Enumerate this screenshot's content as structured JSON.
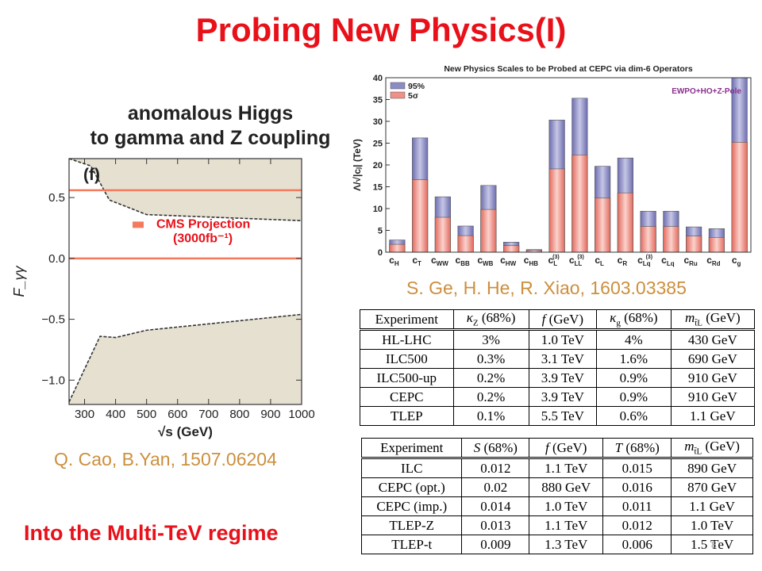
{
  "slide": {
    "title": "Probing New Physics(I)",
    "left_panel_title_line1": "anomalous Higgs",
    "left_panel_title_line2": "to gamma and Z coupling",
    "left_citation": "Q. Cao,  B.Yan, 1507.06204",
    "right_citation": "S. Ge, H. He, R. Xiao, 1603.03385",
    "bottom_text": "Into the Multi-TeV regime",
    "page_number": "8"
  },
  "colors": {
    "title_red": "#e8111a",
    "citation_orange": "#cc8f3d",
    "band_fill": "#e6e0d1",
    "cms_line": "#f47a5e",
    "bar_95": "#8c8cc4",
    "bar_5sigma": "#ef9187"
  },
  "chart_data": [
    {
      "type": "area",
      "panel_label": "(f)",
      "xlabel": "√s (GeV)",
      "ylabel": "F_γγ",
      "xlim": [
        250,
        1000
      ],
      "ylim": [
        -1.2,
        0.82
      ],
      "xticks": [
        "300",
        "400",
        "500",
        "600",
        "700",
        "800",
        "900",
        "1000"
      ],
      "yticks": [
        "0.5",
        "0.0",
        "−0.5",
        "−1.0"
      ],
      "ytick_values": [
        0.5,
        0.0,
        -0.5,
        -1.0
      ],
      "xtick_values": [
        300,
        400,
        500,
        600,
        700,
        800,
        900,
        1000
      ],
      "upper_boundary": {
        "x": [
          250,
          320,
          380,
          500,
          1000
        ],
        "y": [
          0.82,
          0.76,
          0.48,
          0.36,
          0.31
        ]
      },
      "lower_boundary": {
        "x": [
          250,
          350,
          400,
          500,
          1000
        ],
        "y": [
          -1.18,
          -0.64,
          -0.65,
          -0.59,
          -0.46
        ]
      },
      "cms_projection": {
        "lines_y": [
          0.56,
          0.0
        ],
        "label_line1": "CMS Projection",
        "label_line2": "(3000fb⁻¹)"
      }
    },
    {
      "type": "bar",
      "title": "New Physics Scales to be Probed at CEPC via dim-6 Operators",
      "ylabel": "Λ/√|cⱼ| (TeV)",
      "ylim": [
        0,
        40
      ],
      "yticks": [
        "0",
        "5",
        "10",
        "15",
        "20",
        "25",
        "30",
        "35",
        "40"
      ],
      "ytick_values": [
        0,
        5,
        10,
        15,
        20,
        25,
        30,
        35,
        40
      ],
      "annotation": "EWPO+HO+Z-Pole",
      "legend_position": "top-left",
      "categories": [
        "cH",
        "cT",
        "cWW",
        "cBB",
        "cWB",
        "cHW",
        "cHB",
        "cL(3)",
        "cLL(3)",
        "cL",
        "cR",
        "cLq(3)",
        "cLq",
        "cRu",
        "cRd",
        "cg"
      ],
      "category_labels": [
        {
          "m": "c",
          "s": "H",
          "p": ""
        },
        {
          "m": "c",
          "s": "T",
          "p": ""
        },
        {
          "m": "c",
          "s": "WW",
          "p": ""
        },
        {
          "m": "c",
          "s": "BB",
          "p": ""
        },
        {
          "m": "c",
          "s": "WB",
          "p": ""
        },
        {
          "m": "c",
          "s": "HW",
          "p": ""
        },
        {
          "m": "c",
          "s": "HB",
          "p": ""
        },
        {
          "m": "c",
          "s": "L",
          "p": "(3)"
        },
        {
          "m": "c",
          "s": "LL",
          "p": "(3)"
        },
        {
          "m": "c",
          "s": "L",
          "p": ""
        },
        {
          "m": "c",
          "s": "R",
          "p": ""
        },
        {
          "m": "c",
          "s": "Lq",
          "p": "(3)"
        },
        {
          "m": "c",
          "s": "Lq",
          "p": ""
        },
        {
          "m": "c",
          "s": "Ru",
          "p": ""
        },
        {
          "m": "c",
          "s": "Rd",
          "p": ""
        },
        {
          "m": "c",
          "s": "g",
          "p": ""
        }
      ],
      "series": [
        {
          "name": "95%",
          "values": [
            2.8,
            26.2,
            12.7,
            6.0,
            15.3,
            2.3,
            0.6,
            30.3,
            35.3,
            19.7,
            21.6,
            9.4,
            9.4,
            5.8,
            5.4,
            40.0
          ]
        },
        {
          "name": "5σ",
          "values": [
            1.8,
            16.6,
            8.0,
            3.8,
            9.8,
            1.5,
            0.4,
            19.1,
            22.3,
            12.4,
            13.6,
            5.9,
            5.9,
            3.7,
            3.4,
            25.2
          ]
        }
      ]
    },
    {
      "type": "table",
      "columns": [
        "Experiment",
        "κZ (68%)",
        "f (GeV)",
        "κg (68%)",
        "m t̃L (GeV)"
      ],
      "header": [
        {
          "pre": "",
          "it": "",
          "post": "Experiment"
        },
        {
          "pre": "",
          "it": "κ",
          "sub": "Z",
          "post": " (68%)"
        },
        {
          "pre": "",
          "it": "f",
          "sub": "",
          "post": " (GeV)"
        },
        {
          "pre": "",
          "it": "κ",
          "sub": "g",
          "post": " (68%)"
        },
        {
          "pre": "",
          "it": "m",
          "sub": "t̃L",
          "post": " (GeV)"
        }
      ],
      "rows": [
        [
          "HL-LHC",
          "3%",
          "1.0 TeV",
          "4%",
          "430 GeV"
        ],
        [
          "ILC500",
          "0.3%",
          "3.1 TeV",
          "1.6%",
          "690 GeV"
        ],
        [
          "ILC500-up",
          "0.2%",
          "3.9 TeV",
          "0.9%",
          "910 GeV"
        ],
        [
          "CEPC",
          "0.2%",
          "3.9 TeV",
          "0.9%",
          "910 GeV"
        ],
        [
          "TLEP",
          "0.1%",
          "5.5 TeV",
          "0.6%",
          "1.1 GeV"
        ]
      ]
    },
    {
      "type": "table",
      "columns": [
        "Experiment",
        "S (68%)",
        "f (GeV)",
        "T (68%)",
        "m t̃L (GeV)"
      ],
      "header": [
        {
          "pre": "",
          "it": "",
          "post": "Experiment"
        },
        {
          "pre": "",
          "it": "S",
          "sub": "",
          "post": " (68%)"
        },
        {
          "pre": "",
          "it": "f",
          "sub": "",
          "post": " (GeV)"
        },
        {
          "pre": "",
          "it": "T",
          "sub": "",
          "post": " (68%)"
        },
        {
          "pre": "",
          "it": "m",
          "sub": "t̃L",
          "post": " (GeV)"
        }
      ],
      "rows": [
        [
          "ILC",
          "0.012",
          "1.1 TeV",
          "0.015",
          "890 GeV"
        ],
        [
          "CEPC (opt.)",
          "0.02",
          "880 GeV",
          "0.016",
          "870 GeV"
        ],
        [
          "CEPC (imp.)",
          "0.014",
          "1.0 TeV",
          "0.011",
          "1.1 GeV"
        ],
        [
          "TLEP-Z",
          "0.013",
          "1.1 TeV",
          "0.012",
          "1.0 TeV"
        ],
        [
          "TLEP-t",
          "0.009",
          "1.3 TeV",
          "0.006",
          "1.5 TeV"
        ]
      ]
    }
  ]
}
